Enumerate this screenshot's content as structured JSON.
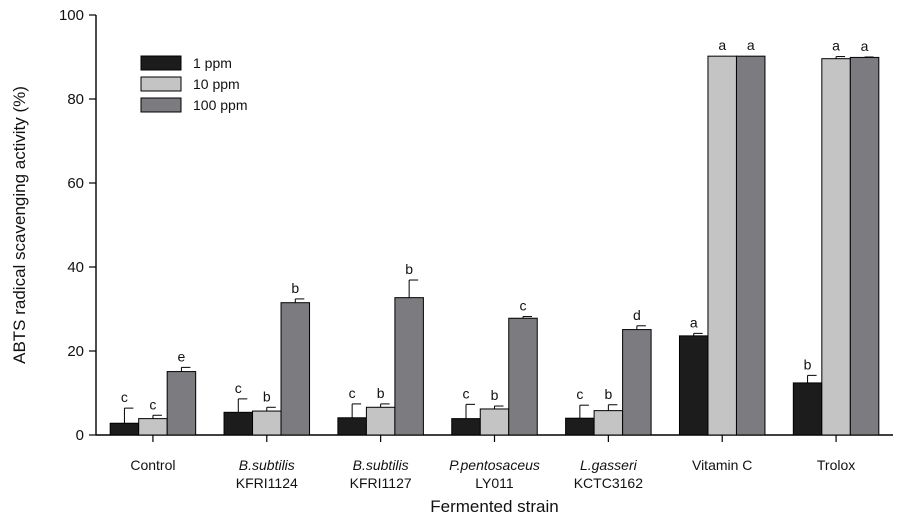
{
  "chart_data": {
    "type": "bar",
    "xlabel": "Fermented strain",
    "ylabel": "ABTS radical scavenging activity (%)",
    "ylim": [
      0,
      100
    ],
    "yticks": [
      0,
      20,
      40,
      60,
      80,
      100
    ],
    "grid": false,
    "legend_position": "top-left",
    "categories": [
      {
        "line1": "Control",
        "line2": "",
        "italic": false
      },
      {
        "line1": "B.subtilis",
        "line2": "KFRI1124",
        "italic": true
      },
      {
        "line1": "B.subtilis",
        "line2": "KFRI1127",
        "italic": true
      },
      {
        "line1": "P.pentosaceus",
        "line2": "LY011",
        "italic": true
      },
      {
        "line1": "L.gasseri",
        "line2": "KCTC3162",
        "italic": true
      },
      {
        "line1": "Vitamin C",
        "line2": "",
        "italic": false
      },
      {
        "line1": "Trolox",
        "line2": "",
        "italic": false
      }
    ],
    "series": [
      {
        "name": "1 ppm",
        "color": "#1c1c1c",
        "values": [
          2.8,
          5.4,
          4.1,
          3.9,
          4.0,
          23.6,
          12.4
        ],
        "errors": [
          3.6,
          3.2,
          3.3,
          3.4,
          3.1,
          0.6,
          1.8
        ],
        "letters": [
          "c",
          "c",
          "c",
          "c",
          "c",
          "a",
          "b"
        ]
      },
      {
        "name": "10 ppm",
        "color": "#c4c4c4",
        "values": [
          3.9,
          5.7,
          6.6,
          6.2,
          5.8,
          90.2,
          89.6
        ],
        "errors": [
          0.8,
          0.9,
          0.8,
          0.7,
          1.4,
          0.0,
          0.5
        ],
        "letters": [
          "c",
          "b",
          "b",
          "b",
          "b",
          "a",
          "a"
        ]
      },
      {
        "name": "100 ppm",
        "color": "#7c7c80",
        "values": [
          15.1,
          31.5,
          32.7,
          27.8,
          25.1,
          90.2,
          89.9
        ],
        "errors": [
          1.0,
          0.9,
          4.2,
          0.4,
          0.9,
          0.0,
          0.1
        ],
        "letters": [
          "e",
          "b",
          "b",
          "c",
          "d",
          "a",
          "a"
        ]
      }
    ]
  }
}
